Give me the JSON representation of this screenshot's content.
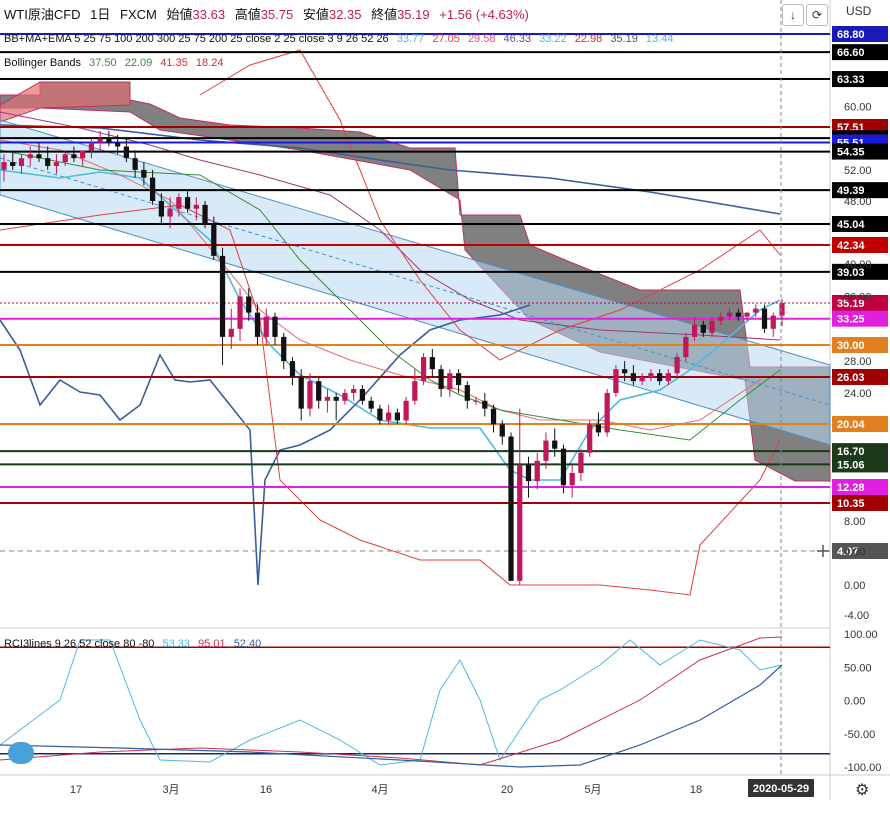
{
  "header": {
    "symbol": "WTI原油CFD",
    "interval": "1日",
    "source": "FXCM",
    "open_label": "始値",
    "open": "33.63",
    "high_label": "高値",
    "high": "35.75",
    "low_label": "安値",
    "low": "32.35",
    "close_label": "終値",
    "close": "35.19",
    "change": "+1.56 (+4.63%)"
  },
  "currency": "USD",
  "indicators": {
    "ma": {
      "label": "BB+MA+EMA 5 25 75 100 200 300 25 75 200 25 close 2 25 close 3 9 26 52 26",
      "values": [
        {
          "v": "33.77",
          "color": "#4fb9e0"
        },
        {
          "v": "27.05",
          "color": "#e04040"
        },
        {
          "v": "29.58",
          "color": "#e0508a"
        },
        {
          "v": "46.33",
          "color": "#6a4d8a"
        },
        {
          "v": "33.22",
          "color": "#4fb9e0"
        },
        {
          "v": "22.98",
          "color": "#c03050"
        },
        {
          "v": "35.19",
          "color": "#555555"
        },
        {
          "v": "13.44",
          "color": "#4fb9e0"
        }
      ]
    },
    "bb": {
      "label": "Bollinger Bands",
      "values": [
        {
          "v": "37.50",
          "color": "#3a8a3a"
        },
        {
          "v": "22.09",
          "color": "#3a8a3a"
        },
        {
          "v": "41.35",
          "color": "#d03030"
        },
        {
          "v": "18.24",
          "color": "#d03030"
        }
      ]
    },
    "rci": {
      "label": "RCI3lines 9 26 52 close 80 -80",
      "values": [
        {
          "v": "53.33",
          "color": "#4fb9e0"
        },
        {
          "v": "95.01",
          "color": "#d03050"
        },
        {
          "v": "52.40",
          "color": "#3060a0"
        }
      ]
    }
  },
  "chart_data": {
    "type": "candlestick",
    "y_ticks": [
      "60.00",
      "52.00",
      "48.00",
      "40.00",
      "36.00",
      "28.00",
      "24.00",
      "8.00",
      "4.00",
      "0.00",
      "-4.00"
    ],
    "rci_ticks": [
      "100.00",
      "50.00",
      "0.00",
      "-50.00",
      "-100.00"
    ],
    "x_ticks": [
      "17",
      "3月",
      "16",
      "4月",
      "20",
      "5月",
      "18"
    ],
    "x_date_label": "2020-05-29",
    "price_levels": [
      {
        "v": 68.8,
        "label": "68.80",
        "color": "#1a1ab8"
      },
      {
        "v": 66.6,
        "label": "66.60",
        "color": "#000000"
      },
      {
        "v": 63.33,
        "label": "63.33",
        "color": "#000000"
      },
      {
        "v": 57.51,
        "label": "57.51",
        "color": "#a00000"
      },
      {
        "v": 56.08,
        "label": "56.08",
        "color": "#000000"
      },
      {
        "v": 55.51,
        "label": "55.51",
        "color": "#1a1ad8"
      },
      {
        "v": 54.35,
        "label": "54.35",
        "color": "#000000"
      },
      {
        "v": 49.39,
        "label": "49.39",
        "color": "#000000"
      },
      {
        "v": 45.04,
        "label": "45.04",
        "color": "#000000"
      },
      {
        "v": 42.34,
        "label": "42.34",
        "color": "#c00000"
      },
      {
        "v": 39.03,
        "label": "39.03",
        "color": "#000000"
      },
      {
        "v": 35.19,
        "label": "35.19",
        "color": "#c00040"
      },
      {
        "v": 33.25,
        "label": "33.25",
        "color": "#e020e0"
      },
      {
        "v": 30.0,
        "label": "30.00",
        "color": "#e08020"
      },
      {
        "v": 26.03,
        "label": "26.03",
        "color": "#a00000"
      },
      {
        "v": 20.04,
        "label": "20.04",
        "color": "#e08020"
      },
      {
        "v": 16.7,
        "label": "16.70",
        "color": "#1a3a1a"
      },
      {
        "v": 15.06,
        "label": "15.06",
        "color": "#1a3a1a"
      },
      {
        "v": 12.28,
        "label": "12.28",
        "color": "#e020e0"
      },
      {
        "v": 10.35,
        "label": "10.35",
        "color": "#a00000"
      },
      {
        "v": 4.07,
        "label": "4.07",
        "color": "#555555"
      }
    ],
    "rci_levels": [
      80,
      -80
    ],
    "candles": [
      {
        "o": 52.0,
        "h": 54.0,
        "l": 50.5,
        "c": 53.0
      },
      {
        "o": 53.0,
        "h": 54.5,
        "l": 52.0,
        "c": 52.5
      },
      {
        "o": 52.5,
        "h": 54.0,
        "l": 51.5,
        "c": 53.5
      },
      {
        "o": 53.5,
        "h": 55.0,
        "l": 52.5,
        "c": 54.0
      },
      {
        "o": 54.0,
        "h": 55.5,
        "l": 53.0,
        "c": 53.5
      },
      {
        "o": 53.5,
        "h": 55.0,
        "l": 52.0,
        "c": 52.5
      },
      {
        "o": 52.5,
        "h": 54.0,
        "l": 51.5,
        "c": 53.0
      },
      {
        "o": 53.0,
        "h": 54.5,
        "l": 52.5,
        "c": 54.0
      },
      {
        "o": 54.0,
        "h": 55.0,
        "l": 53.0,
        "c": 53.5
      },
      {
        "o": 53.5,
        "h": 54.5,
        "l": 52.5,
        "c": 54.5
      },
      {
        "o": 54.5,
        "h": 56.0,
        "l": 53.5,
        "c": 55.5
      },
      {
        "o": 55.5,
        "h": 57.0,
        "l": 54.5,
        "c": 56.0
      },
      {
        "o": 56.0,
        "h": 57.0,
        "l": 55.0,
        "c": 55.5
      },
      {
        "o": 55.5,
        "h": 56.5,
        "l": 54.0,
        "c": 55.0
      },
      {
        "o": 55.0,
        "h": 56.0,
        "l": 53.0,
        "c": 53.5
      },
      {
        "o": 53.5,
        "h": 54.5,
        "l": 51.0,
        "c": 52.0
      },
      {
        "o": 52.0,
        "h": 53.0,
        "l": 50.0,
        "c": 51.0
      },
      {
        "o": 51.0,
        "h": 52.0,
        "l": 47.5,
        "c": 48.0
      },
      {
        "o": 48.0,
        "h": 49.0,
        "l": 45.0,
        "c": 46.0
      },
      {
        "o": 46.0,
        "h": 48.5,
        "l": 44.5,
        "c": 47.0
      },
      {
        "o": 47.0,
        "h": 49.0,
        "l": 46.0,
        "c": 48.5
      },
      {
        "o": 48.5,
        "h": 49.5,
        "l": 46.5,
        "c": 47.0
      },
      {
        "o": 47.0,
        "h": 48.5,
        "l": 45.5,
        "c": 47.5
      },
      {
        "o": 47.5,
        "h": 48.0,
        "l": 44.5,
        "c": 45.0
      },
      {
        "o": 45.0,
        "h": 46.0,
        "l": 40.5,
        "c": 41.0
      },
      {
        "o": 41.0,
        "h": 42.0,
        "l": 27.5,
        "c": 31.0
      },
      {
        "o": 31.0,
        "h": 34.5,
        "l": 29.5,
        "c": 32.0
      },
      {
        "o": 32.0,
        "h": 37.0,
        "l": 30.5,
        "c": 36.0
      },
      {
        "o": 36.0,
        "h": 37.0,
        "l": 33.0,
        "c": 34.0
      },
      {
        "o": 34.0,
        "h": 35.0,
        "l": 30.0,
        "c": 31.0
      },
      {
        "o": 31.0,
        "h": 34.5,
        "l": 30.0,
        "c": 33.5
      },
      {
        "o": 33.5,
        "h": 34.0,
        "l": 30.0,
        "c": 31.0
      },
      {
        "o": 31.0,
        "h": 31.5,
        "l": 27.0,
        "c": 28.0
      },
      {
        "o": 28.0,
        "h": 28.5,
        "l": 25.0,
        "c": 26.0
      },
      {
        "o": 26.0,
        "h": 27.0,
        "l": 20.5,
        "c": 22.0
      },
      {
        "o": 22.0,
        "h": 26.5,
        "l": 21.0,
        "c": 25.5
      },
      {
        "o": 25.5,
        "h": 26.0,
        "l": 22.0,
        "c": 23.0
      },
      {
        "o": 23.0,
        "h": 24.5,
        "l": 21.5,
        "c": 23.5
      },
      {
        "o": 23.5,
        "h": 24.0,
        "l": 20.5,
        "c": 23.0
      },
      {
        "o": 23.0,
        "h": 24.5,
        "l": 22.5,
        "c": 24.0
      },
      {
        "o": 24.0,
        "h": 25.0,
        "l": 23.0,
        "c": 24.5
      },
      {
        "o": 24.5,
        "h": 25.0,
        "l": 22.5,
        "c": 23.0
      },
      {
        "o": 23.0,
        "h": 23.5,
        "l": 21.5,
        "c": 22.0
      },
      {
        "o": 22.0,
        "h": 22.5,
        "l": 20.0,
        "c": 20.5
      },
      {
        "o": 20.5,
        "h": 22.5,
        "l": 20.0,
        "c": 21.5
      },
      {
        "o": 21.5,
        "h": 22.0,
        "l": 20.0,
        "c": 20.5
      },
      {
        "o": 20.5,
        "h": 23.5,
        "l": 20.0,
        "c": 23.0
      },
      {
        "o": 23.0,
        "h": 27.0,
        "l": 22.5,
        "c": 25.5
      },
      {
        "o": 25.5,
        "h": 29.0,
        "l": 25.0,
        "c": 28.5
      },
      {
        "o": 28.5,
        "h": 29.5,
        "l": 26.0,
        "c": 27.0
      },
      {
        "o": 27.0,
        "h": 27.5,
        "l": 23.5,
        "c": 24.5
      },
      {
        "o": 24.5,
        "h": 27.0,
        "l": 23.5,
        "c": 26.5
      },
      {
        "o": 26.5,
        "h": 27.0,
        "l": 24.0,
        "c": 25.0
      },
      {
        "o": 25.0,
        "h": 25.5,
        "l": 22.0,
        "c": 23.0
      },
      {
        "o": 23.0,
        "h": 23.5,
        "l": 22.5,
        "c": 23.0
      },
      {
        "o": 23.0,
        "h": 24.0,
        "l": 21.0,
        "c": 22.0
      },
      {
        "o": 22.0,
        "h": 22.5,
        "l": 19.0,
        "c": 20.0
      },
      {
        "o": 20.0,
        "h": 20.5,
        "l": 17.5,
        "c": 18.5
      },
      {
        "o": 18.5,
        "h": 19.0,
        "l": 0.5,
        "c": 0.5
      },
      {
        "o": 0.5,
        "h": 22.0,
        "l": 0.0,
        "c": 15.0
      },
      {
        "o": 15.0,
        "h": 16.0,
        "l": 11.0,
        "c": 13.0
      },
      {
        "o": 13.0,
        "h": 16.5,
        "l": 12.0,
        "c": 15.5
      },
      {
        "o": 15.5,
        "h": 19.0,
        "l": 14.5,
        "c": 18.0
      },
      {
        "o": 18.0,
        "h": 19.5,
        "l": 16.0,
        "c": 17.0
      },
      {
        "o": 17.0,
        "h": 17.5,
        "l": 11.5,
        "c": 12.5
      },
      {
        "o": 12.5,
        "h": 15.0,
        "l": 11.0,
        "c": 14.0
      },
      {
        "o": 14.0,
        "h": 17.0,
        "l": 13.0,
        "c": 16.5
      },
      {
        "o": 16.5,
        "h": 20.5,
        "l": 16.0,
        "c": 20.0
      },
      {
        "o": 20.0,
        "h": 21.5,
        "l": 18.5,
        "c": 19.0
      },
      {
        "o": 19.0,
        "h": 24.5,
        "l": 18.5,
        "c": 24.0
      },
      {
        "o": 24.0,
        "h": 27.5,
        "l": 23.5,
        "c": 27.0
      },
      {
        "o": 27.0,
        "h": 28.0,
        "l": 25.5,
        "c": 26.5
      },
      {
        "o": 26.5,
        "h": 27.5,
        "l": 25.0,
        "c": 25.5
      },
      {
        "o": 25.5,
        "h": 26.5,
        "l": 25.0,
        "c": 26.0
      },
      {
        "o": 26.0,
        "h": 27.0,
        "l": 25.5,
        "c": 26.5
      },
      {
        "o": 26.5,
        "h": 27.0,
        "l": 25.0,
        "c": 25.5
      },
      {
        "o": 25.5,
        "h": 27.0,
        "l": 25.0,
        "c": 26.5
      },
      {
        "o": 26.5,
        "h": 29.0,
        "l": 26.0,
        "c": 28.5
      },
      {
        "o": 28.5,
        "h": 31.5,
        "l": 28.0,
        "c": 31.0
      },
      {
        "o": 31.0,
        "h": 33.5,
        "l": 30.5,
        "c": 32.5
      },
      {
        "o": 32.5,
        "h": 33.0,
        "l": 31.0,
        "c": 31.5
      },
      {
        "o": 31.5,
        "h": 33.5,
        "l": 31.0,
        "c": 33.0
      },
      {
        "o": 33.0,
        "h": 34.0,
        "l": 32.5,
        "c": 33.5
      },
      {
        "o": 33.5,
        "h": 34.5,
        "l": 33.0,
        "c": 34.0
      },
      {
        "o": 34.0,
        "h": 34.5,
        "l": 33.0,
        "c": 33.5
      },
      {
        "o": 33.5,
        "h": 34.0,
        "l": 33.0,
        "c": 34.0
      },
      {
        "o": 34.0,
        "h": 35.0,
        "l": 33.5,
        "c": 34.5
      },
      {
        "o": 34.5,
        "h": 35.0,
        "l": 31.5,
        "c": 32.0
      },
      {
        "o": 32.0,
        "h": 34.0,
        "l": 31.0,
        "c": 33.63
      },
      {
        "o": 33.63,
        "h": 35.75,
        "l": 32.35,
        "c": 35.19
      }
    ]
  }
}
